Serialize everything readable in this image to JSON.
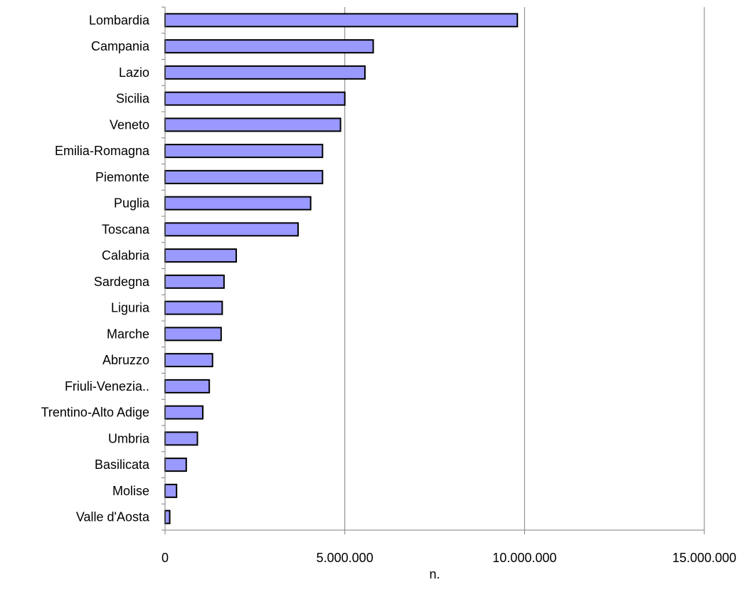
{
  "chart_data": {
    "type": "bar",
    "orientation": "horizontal",
    "categories": [
      "Lombardia",
      "Campania",
      "Lazio",
      "Sicilia",
      "Veneto",
      "Emilia-Romagna",
      "Piemonte",
      "Puglia",
      "Toscana",
      "Calabria",
      "Sardegna",
      "Liguria",
      "Marche",
      "Abruzzo",
      "Friuli-Venezia..",
      "Trentino-Alto Adige",
      "Umbria",
      "Basilicata",
      "Molise",
      "Valle d'Aosta"
    ],
    "values": [
      9800000,
      5790000,
      5560000,
      5000000,
      4880000,
      4380000,
      4380000,
      4050000,
      3700000,
      1980000,
      1640000,
      1590000,
      1560000,
      1320000,
      1230000,
      1050000,
      900000,
      590000,
      320000,
      130000
    ],
    "xlabel": "n.",
    "ylabel": "",
    "xlim": [
      0,
      15000000
    ],
    "x_ticks": [
      "0",
      "5.000.000",
      "10.000.000",
      "15.000.000"
    ],
    "x_tick_values": [
      0,
      5000000,
      10000000,
      15000000
    ],
    "grid": "vertical gridlines at major ticks",
    "legend": "none",
    "colors": {
      "bar_fill": "#9999ff",
      "bar_stroke": "#000000",
      "grid": "#808080",
      "frame": "#808080"
    }
  }
}
